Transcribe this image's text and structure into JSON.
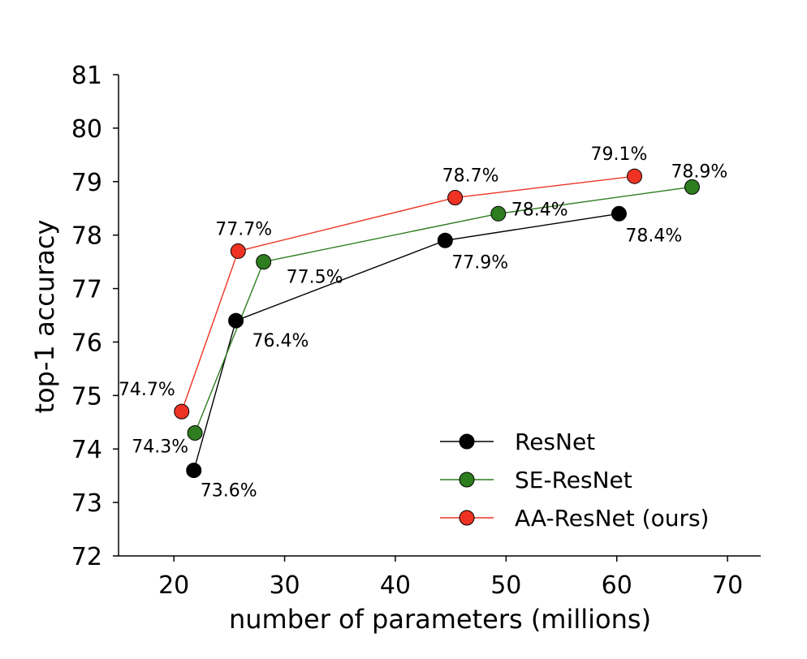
{
  "chart_data": {
    "type": "line",
    "xlabel": "number of parameters (millions)",
    "ylabel": "top-1 accuracy",
    "xlim": [
      15,
      73
    ],
    "ylim": [
      72,
      81
    ],
    "xticks": [
      "20",
      "30",
      "40",
      "50",
      "60",
      "70"
    ],
    "yticks": [
      "72",
      "73",
      "74",
      "75",
      "76",
      "77",
      "78",
      "79",
      "80",
      "81"
    ],
    "grid": false,
    "legend_placement": "bottom-right",
    "series": [
      {
        "name": "ResNet",
        "color": "#000000",
        "points": [
          {
            "x": 21.8,
            "y": 73.6,
            "label": "73.6%"
          },
          {
            "x": 25.6,
            "y": 76.4,
            "label": "76.4%"
          },
          {
            "x": 44.5,
            "y": 77.9,
            "label": "77.9%"
          },
          {
            "x": 60.2,
            "y": 78.4,
            "label": "78.4%"
          }
        ]
      },
      {
        "name": "SE-ResNet",
        "color": "#2e7d1f",
        "points": [
          {
            "x": 21.9,
            "y": 74.3,
            "label": "74.3%"
          },
          {
            "x": 28.1,
            "y": 77.5,
            "label": "77.5%"
          },
          {
            "x": 49.3,
            "y": 78.4,
            "label": "78.4%"
          },
          {
            "x": 66.8,
            "y": 78.9,
            "label": "78.9%"
          }
        ]
      },
      {
        "name": "AA-ResNet (ours)",
        "color": "#ee3324",
        "points": [
          {
            "x": 20.7,
            "y": 74.7,
            "label": "74.7%"
          },
          {
            "x": 25.8,
            "y": 77.7,
            "label": "77.7%"
          },
          {
            "x": 45.4,
            "y": 78.7,
            "label": "78.7%"
          },
          {
            "x": 61.6,
            "y": 79.1,
            "label": "79.1%"
          }
        ]
      }
    ]
  }
}
